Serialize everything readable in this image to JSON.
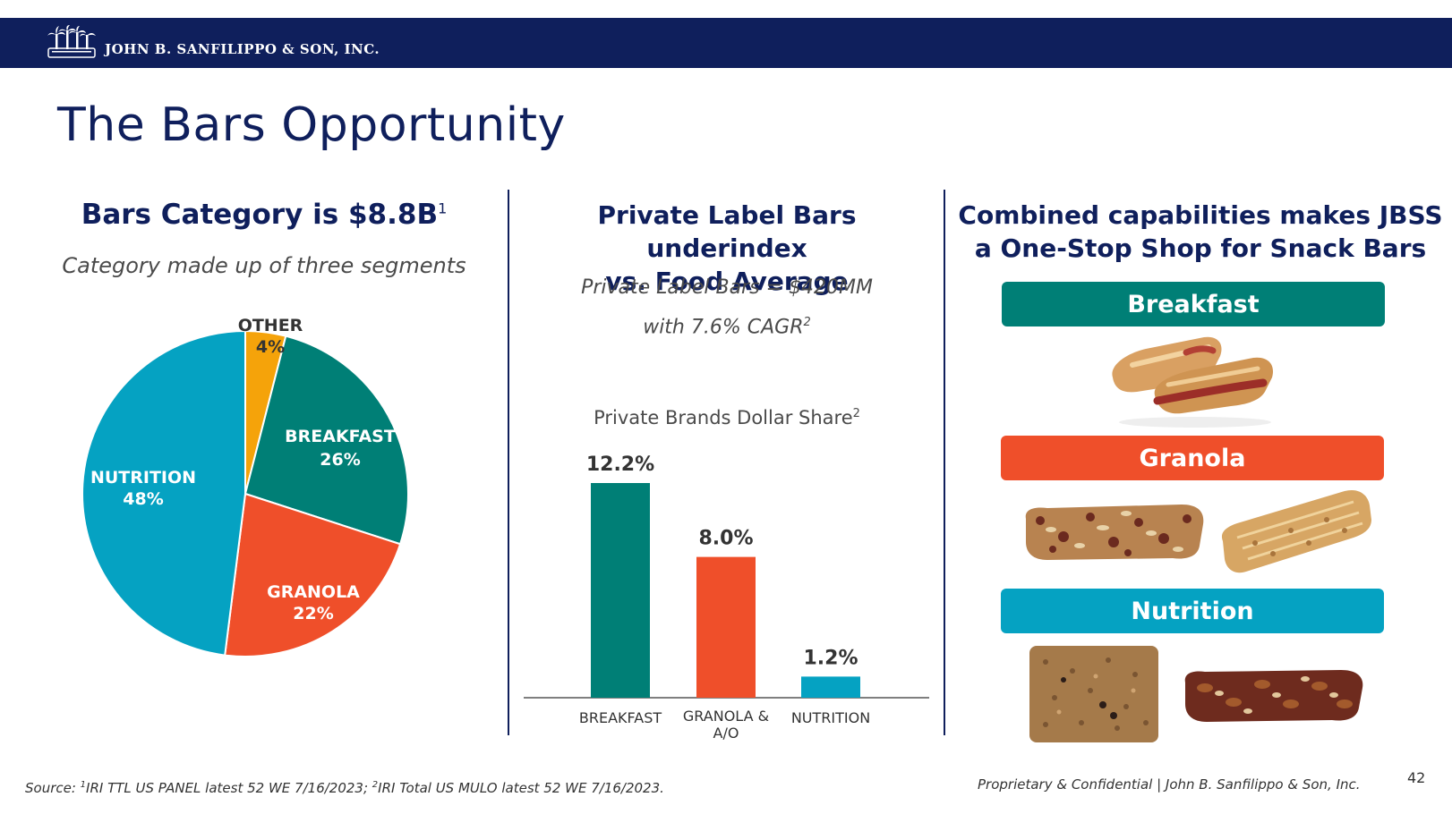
{
  "header": {
    "company": "JOHN B. SANFILIPPO & SON, INC."
  },
  "title": "The Bars Opportunity",
  "left": {
    "heading": "Bars Category is $8.8B",
    "heading_sup": "1",
    "subheading": "Category made up of three segments"
  },
  "middle": {
    "heading_line1": "Private Label Bars underindex",
    "heading_line2": "vs. Food Average",
    "sub_line1": "Private Label Bars = $420MM",
    "sub_line2": "with 7.6% CAGR",
    "sub_sup": "2",
    "chart_title": "Private Brands Dollar Share",
    "chart_title_sup": "2"
  },
  "right": {
    "heading_line1": "Combined capabilities makes JBSS",
    "heading_line2": "a One-Stop Shop for Snack Bars",
    "pills": [
      {
        "label": "Breakfast",
        "color": "#007f76"
      },
      {
        "label": "Granola",
        "color": "#ef4f2a"
      },
      {
        "label": "Nutrition",
        "color": "#05a2c2"
      }
    ]
  },
  "chart_data": [
    {
      "type": "pie",
      "title": "Category made up of three segments",
      "slices": [
        {
          "name": "OTHER",
          "value": 4,
          "label": "4%",
          "color": "#f5a30a"
        },
        {
          "name": "BREAKFAST",
          "value": 26,
          "label": "26%",
          "color": "#007f76"
        },
        {
          "name": "GRANOLA",
          "value": 22,
          "label": "22%",
          "color": "#ef4f2a"
        },
        {
          "name": "NUTRITION",
          "value": 48,
          "label": "48%",
          "color": "#05a2c2"
        }
      ]
    },
    {
      "type": "bar",
      "title": "Private Brands Dollar Share",
      "categories": [
        "BREAKFAST",
        "GRANOLA & A/O",
        "NUTRITION"
      ],
      "category_lines": [
        [
          "BREAKFAST"
        ],
        [
          "GRANOLA &",
          "A/O"
        ],
        [
          "NUTRITION"
        ]
      ],
      "values": [
        12.2,
        8.0,
        1.2
      ],
      "value_labels": [
        "12.2%",
        "8.0%",
        "1.2%"
      ],
      "colors": [
        "#007f76",
        "#ef4f2a",
        "#05a2c2"
      ],
      "ylim": [
        0,
        12.2
      ],
      "grid": false
    }
  ],
  "footer": {
    "source_sup1": "1",
    "source_part1": "IRI TTL US PANEL latest 52 WE 7/16/2023; ",
    "source_sup2": "2",
    "source_part2": "IRI Total US MULO latest 52 WE 7/16/2023.",
    "source_prefix": "Source: ",
    "proprietary": "Proprietary & Confidential | John B. Sanfilippo & Son, Inc.",
    "page_number": "42"
  }
}
